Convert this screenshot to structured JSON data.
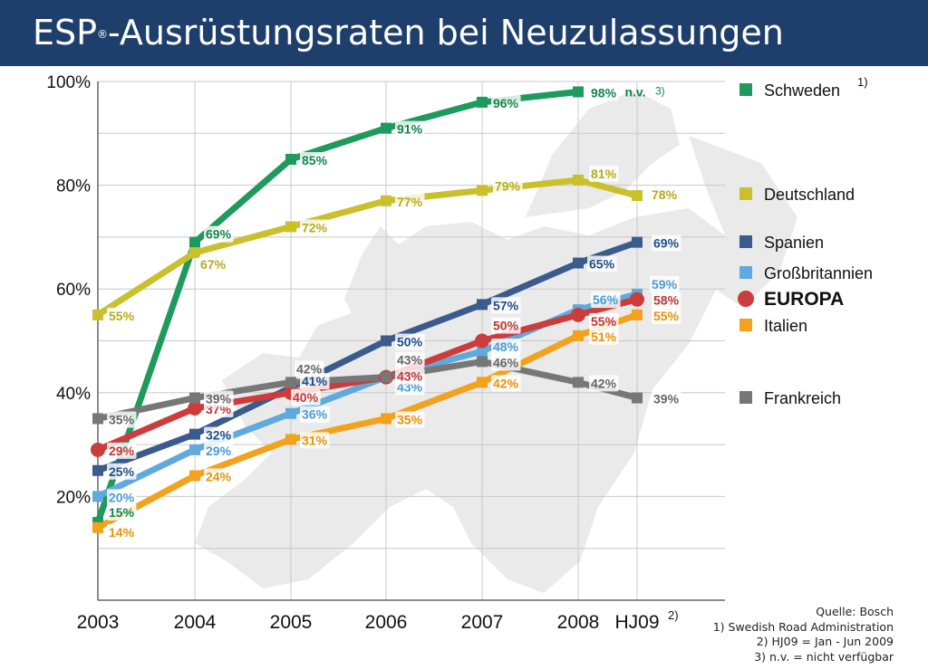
{
  "title": {
    "prefix": "ESP",
    "mark": "®",
    "suffix": "-Ausrüstungsraten bei Neuzulassungen"
  },
  "chart_data": {
    "type": "line",
    "title": "ESP®-Ausrüstungsraten bei Neuzulassungen",
    "categories": [
      "2003",
      "2004",
      "2005",
      "2006",
      "2007",
      "2008",
      "HJ09"
    ],
    "category_notes": {
      "HJ09": "2)"
    },
    "y_ticks": [
      "20%",
      "40%",
      "60%",
      "80%",
      "100%"
    ],
    "ylim": [
      0,
      100
    ],
    "grid": true,
    "legend_position": "right",
    "series": [
      {
        "name": "Schweden",
        "note": "1)",
        "color": "#1d9a5c",
        "label_color": "#13854c",
        "values": [
          15,
          69,
          85,
          91,
          96,
          98,
          null
        ],
        "missing_label": "n.v.",
        "missing_note": "3)"
      },
      {
        "name": "Deutschland",
        "color": "#c9c02c",
        "label_color": "#b5ac18",
        "values": [
          55,
          67,
          72,
          77,
          79,
          81,
          78
        ]
      },
      {
        "name": "Spanien",
        "color": "#3b5b8c",
        "label_color": "#1f4d8a",
        "values": [
          25,
          32,
          41,
          50,
          57,
          65,
          69
        ]
      },
      {
        "name": "Großbritannien",
        "color": "#5fa9dd",
        "label_color": "#4a9bd5",
        "values": [
          20,
          29,
          36,
          43,
          48,
          56,
          59
        ]
      },
      {
        "name": "EUROPA",
        "color": "#cd3c3c",
        "label_color": "#c23434",
        "values": [
          29,
          37,
          40,
          43,
          50,
          55,
          58
        ]
      },
      {
        "name": "Italien",
        "color": "#f2a21c",
        "label_color": "#e8930a",
        "values": [
          14,
          24,
          31,
          35,
          42,
          51,
          55
        ]
      },
      {
        "name": "Frankreich",
        "color": "#777777",
        "label_color": "#666666",
        "values": [
          35,
          39,
          42,
          43,
          46,
          42,
          39
        ]
      }
    ]
  },
  "footnotes": {
    "source": "Quelle: Bosch",
    "note1": "1) Swedish Road Administration",
    "note2": "2) HJ09 = Jan - Jun 2009",
    "note3": "3) n.v. = nicht verfügbar"
  }
}
